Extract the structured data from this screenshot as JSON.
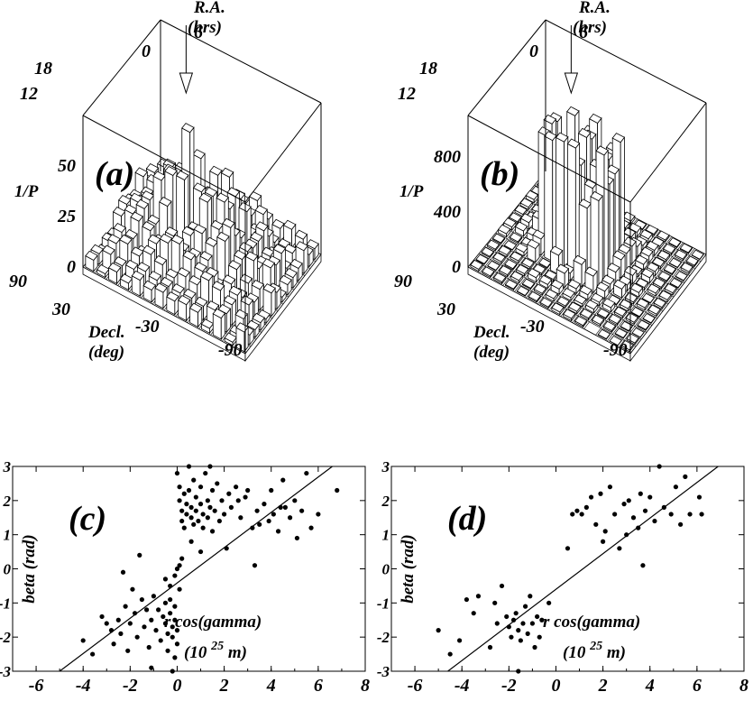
{
  "chart_data": [
    {
      "id": "a",
      "type": "3d-bar",
      "panel_label": "(a)",
      "z_label": "1/P",
      "ra_label_1": "R.A.",
      "ra_label_2": "(hrs)",
      "decl_label_1": "Decl.",
      "decl_label_2": "(deg)",
      "z_ticks": [
        "0",
        "25",
        "50"
      ],
      "ra_ticks": [
        "12",
        "18",
        "0",
        "6"
      ],
      "decl_ticks": [
        "90",
        "30",
        "-30",
        "-90"
      ],
      "zlim": [
        0,
        75
      ],
      "peak_value": 60,
      "marker": "arrow at peak"
    },
    {
      "id": "b",
      "type": "3d-bar",
      "panel_label": "(b)",
      "z_label": "1/P",
      "ra_label_1": "R.A.",
      "ra_label_2": "(hrs)",
      "decl_label_1": "Decl.",
      "decl_label_2": "(deg)",
      "z_ticks": [
        "0",
        "400",
        "800"
      ],
      "ra_ticks": [
        "12",
        "18",
        "0",
        "6"
      ],
      "decl_ticks": [
        "90",
        "30",
        "-30",
        "-90"
      ],
      "zlim": [
        0,
        1100
      ],
      "peak_value": 1000,
      "marker": "arrow at peak"
    },
    {
      "id": "c",
      "type": "scatter",
      "panel_label": "(c)",
      "ylabel": "beta  (rad)",
      "xlabel_1": "r cos(gamma)",
      "xlabel_2_pre": "(10",
      "xlabel_2_sup": "25",
      "xlabel_2_post": "m)",
      "xlim": [
        -7,
        8
      ],
      "ylim": [
        -3,
        3
      ],
      "x_ticks": [
        "-6",
        "-4",
        "-2",
        "0",
        "2",
        "4",
        "6",
        "8"
      ],
      "y_ticks": [
        "3",
        "2",
        "1",
        "0",
        "-1",
        "-2",
        "-3"
      ],
      "fit_line": {
        "x": [
          -5.0,
          6.6
        ],
        "y": [
          -3.0,
          3.0
        ]
      },
      "points": [
        [
          -4.0,
          -2.1
        ],
        [
          -3.6,
          -2.5
        ],
        [
          -3.2,
          -1.4
        ],
        [
          -3.0,
          -1.6
        ],
        [
          -2.8,
          -1.8
        ],
        [
          -2.7,
          -2.2
        ],
        [
          -2.5,
          -1.5
        ],
        [
          -2.4,
          -1.9
        ],
        [
          -2.2,
          -1.1
        ],
        [
          -2.1,
          -2.4
        ],
        [
          -2.0,
          -1.6
        ],
        [
          -1.9,
          -0.6
        ],
        [
          -1.8,
          -1.3
        ],
        [
          -1.7,
          -2.0
        ],
        [
          -1.5,
          -0.9
        ],
        [
          -1.4,
          -1.7
        ],
        [
          -1.3,
          -1.2
        ],
        [
          -1.2,
          -2.3
        ],
        [
          -1.1,
          -1.5
        ],
        [
          -1.0,
          -0.8
        ],
        [
          -0.9,
          -1.8
        ],
        [
          -0.8,
          -1.2
        ],
        [
          -0.7,
          -2.1
        ],
        [
          -0.6,
          -1.4
        ],
        [
          -0.5,
          -1.0
        ],
        [
          -0.5,
          -1.6
        ],
        [
          -0.4,
          -1.9
        ],
        [
          -0.4,
          -2.4
        ],
        [
          -0.3,
          -0.9
        ],
        [
          -0.3,
          -1.3
        ],
        [
          -0.2,
          -1.7
        ],
        [
          -0.2,
          -2.0
        ],
        [
          -0.1,
          -1.1
        ],
        [
          -0.1,
          -1.5
        ],
        [
          -0.1,
          -2.6
        ],
        [
          -0.2,
          -3.0
        ],
        [
          0.0,
          -1.8
        ],
        [
          0.0,
          -2.2
        ],
        [
          -0.3,
          -0.5
        ],
        [
          -0.1,
          -0.2
        ],
        [
          0.0,
          0.0
        ],
        [
          0.1,
          0.1
        ],
        [
          0.1,
          -0.6
        ],
        [
          0.2,
          0.3
        ],
        [
          -0.5,
          -0.3
        ],
        [
          -2.3,
          -0.1
        ],
        [
          -1.6,
          0.4
        ],
        [
          -1.1,
          -2.9
        ],
        [
          0.0,
          2.8
        ],
        [
          0.1,
          2.4
        ],
        [
          0.1,
          2.0
        ],
        [
          0.2,
          1.7
        ],
        [
          0.2,
          1.4
        ],
        [
          0.3,
          2.2
        ],
        [
          0.3,
          1.2
        ],
        [
          0.4,
          1.9
        ],
        [
          0.4,
          1.6
        ],
        [
          0.5,
          3.0
        ],
        [
          0.5,
          2.3
        ],
        [
          0.6,
          1.8
        ],
        [
          0.6,
          1.5
        ],
        [
          0.7,
          2.6
        ],
        [
          0.7,
          1.3
        ],
        [
          0.8,
          2.1
        ],
        [
          0.8,
          1.7
        ],
        [
          0.9,
          1.4
        ],
        [
          1.0,
          2.4
        ],
        [
          1.0,
          1.9
        ],
        [
          1.1,
          1.6
        ],
        [
          1.1,
          1.2
        ],
        [
          1.2,
          2.8
        ],
        [
          1.3,
          2.0
        ],
        [
          1.3,
          1.5
        ],
        [
          1.4,
          1.8
        ],
        [
          1.5,
          2.3
        ],
        [
          1.5,
          1.1
        ],
        [
          1.6,
          1.7
        ],
        [
          1.7,
          2.5
        ],
        [
          1.8,
          1.4
        ],
        [
          1.9,
          2.0
        ],
        [
          2.0,
          1.6
        ],
        [
          2.1,
          0.6
        ],
        [
          2.2,
          2.2
        ],
        [
          2.3,
          1.8
        ],
        [
          2.5,
          2.4
        ],
        [
          2.7,
          1.5
        ],
        [
          2.9,
          2.1
        ],
        [
          3.0,
          2.3
        ],
        [
          3.2,
          1.2
        ],
        [
          3.3,
          0.1
        ],
        [
          3.4,
          1.7
        ],
        [
          3.5,
          1.3
        ],
        [
          3.7,
          1.9
        ],
        [
          3.9,
          1.4
        ],
        [
          4.0,
          2.3
        ],
        [
          4.1,
          1.6
        ],
        [
          4.3,
          1.1
        ],
        [
          4.5,
          2.6
        ],
        [
          4.6,
          1.8
        ],
        [
          4.8,
          1.5
        ],
        [
          5.0,
          2.0
        ],
        [
          5.1,
          0.9
        ],
        [
          5.3,
          1.7
        ],
        [
          5.5,
          2.8
        ],
        [
          5.7,
          1.2
        ],
        [
          6.0,
          1.6
        ],
        [
          6.8,
          2.3
        ],
        [
          1.0,
          0.5
        ],
        [
          0.6,
          0.8
        ],
        [
          1.4,
          3.0
        ],
        [
          2.6,
          2.0
        ],
        [
          4.4,
          1.8
        ]
      ]
    },
    {
      "id": "d",
      "type": "scatter",
      "panel_label": "(d)",
      "ylabel": "beta  (rad)",
      "xlabel_1": "r cos(gamma)",
      "xlabel_2_pre": "(10",
      "xlabel_2_sup": "25",
      "xlabel_2_post": "m)",
      "xlim": [
        -7,
        8
      ],
      "ylim": [
        -3,
        3
      ],
      "x_ticks": [
        "-6",
        "-4",
        "-2",
        "0",
        "2",
        "4",
        "6",
        "8"
      ],
      "y_ticks": [
        "3",
        "2",
        "1",
        "0",
        "-1",
        "-2",
        "-3"
      ],
      "fit_line": {
        "x": [
          -4.6,
          6.9
        ],
        "y": [
          -3.0,
          3.0
        ]
      },
      "points": [
        [
          -5.0,
          -1.8
        ],
        [
          -4.5,
          -2.5
        ],
        [
          -4.1,
          -2.1
        ],
        [
          -3.8,
          -0.9
        ],
        [
          -3.5,
          -1.3
        ],
        [
          -3.3,
          -0.8
        ],
        [
          -2.8,
          -2.3
        ],
        [
          -2.6,
          -1.0
        ],
        [
          -2.3,
          -0.5
        ],
        [
          -2.1,
          -1.4
        ],
        [
          -2.0,
          -1.7
        ],
        [
          -1.9,
          -2.0
        ],
        [
          -1.8,
          -1.5
        ],
        [
          -1.7,
          -1.3
        ],
        [
          -1.6,
          -1.8
        ],
        [
          -1.5,
          -2.1
        ],
        [
          -1.4,
          -1.6
        ],
        [
          -1.3,
          -1.1
        ],
        [
          -1.2,
          -1.9
        ],
        [
          -1.1,
          -0.8
        ],
        [
          -1.0,
          -1.6
        ],
        [
          -0.9,
          -2.3
        ],
        [
          -0.8,
          -1.4
        ],
        [
          -0.7,
          -2.0
        ],
        [
          -0.6,
          -1.5
        ],
        [
          -0.3,
          -1.0
        ],
        [
          -1.6,
          -3.0
        ],
        [
          -2.5,
          -1.6
        ],
        [
          0.5,
          0.6
        ],
        [
          0.7,
          1.6
        ],
        [
          0.9,
          1.7
        ],
        [
          1.1,
          1.6
        ],
        [
          1.3,
          1.8
        ],
        [
          1.5,
          2.1
        ],
        [
          1.7,
          1.3
        ],
        [
          1.9,
          2.2
        ],
        [
          2.1,
          1.1
        ],
        [
          2.3,
          2.4
        ],
        [
          2.5,
          1.6
        ],
        [
          2.7,
          0.6
        ],
        [
          2.9,
          1.9
        ],
        [
          3.1,
          2.0
        ],
        [
          3.3,
          1.5
        ],
        [
          3.5,
          1.2
        ],
        [
          3.6,
          2.2
        ],
        [
          3.7,
          0.1
        ],
        [
          3.8,
          1.7
        ],
        [
          4.0,
          2.1
        ],
        [
          4.2,
          1.4
        ],
        [
          4.4,
          3.0
        ],
        [
          4.6,
          1.8
        ],
        [
          4.9,
          1.6
        ],
        [
          5.1,
          2.4
        ],
        [
          5.3,
          1.3
        ],
        [
          5.5,
          2.7
        ],
        [
          5.7,
          1.6
        ],
        [
          6.1,
          2.1
        ],
        [
          6.2,
          1.6
        ],
        [
          2.0,
          0.8
        ],
        [
          3.0,
          1.0
        ]
      ]
    }
  ]
}
